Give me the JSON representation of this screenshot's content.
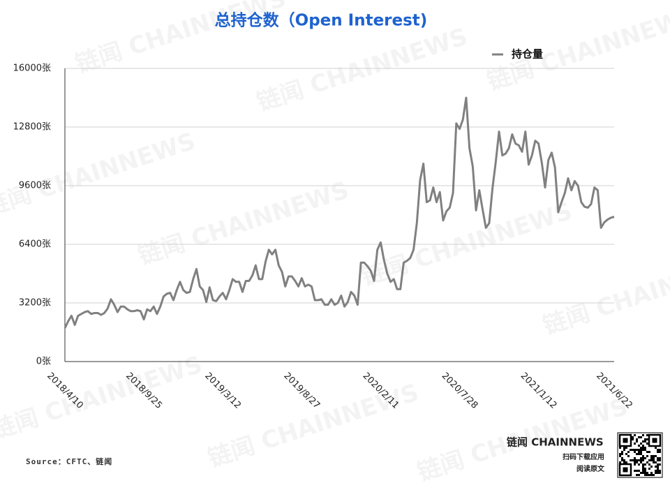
{
  "chart_data": {
    "type": "line",
    "title": "总持仓数（Open Interest)",
    "categories": [
      "2018/4/10",
      null,
      null,
      null,
      null,
      null,
      null,
      null,
      null,
      null,
      null,
      null,
      null,
      null,
      null,
      null,
      null,
      null,
      null,
      null,
      null,
      null,
      null,
      null,
      "2018/9/25",
      null,
      null,
      null,
      null,
      null,
      null,
      null,
      null,
      null,
      null,
      null,
      null,
      null,
      null,
      null,
      null,
      null,
      null,
      null,
      null,
      null,
      null,
      null,
      "2019/3/12",
      null,
      null,
      null,
      null,
      null,
      null,
      null,
      null,
      null,
      null,
      null,
      null,
      null,
      null,
      null,
      null,
      null,
      null,
      null,
      null,
      null,
      null,
      null,
      "2019/8/27",
      null,
      null,
      null,
      null,
      null,
      null,
      null,
      null,
      null,
      null,
      null,
      null,
      null,
      null,
      null,
      null,
      null,
      null,
      null,
      null,
      null,
      null,
      null,
      "2020/2/11",
      null,
      null,
      null,
      null,
      null,
      null,
      null,
      null,
      null,
      null,
      null,
      null,
      null,
      null,
      null,
      null,
      null,
      null,
      null,
      null,
      null,
      null,
      null,
      "2020/7/28",
      null,
      null,
      null,
      null,
      null,
      null,
      null,
      null,
      null,
      null,
      null,
      null,
      null,
      null,
      null,
      null,
      null,
      null,
      null,
      null,
      null,
      null,
      null,
      "2021/1/12",
      null,
      null,
      null,
      null,
      null,
      null,
      null,
      null,
      null,
      null,
      null,
      null,
      null,
      null,
      null,
      null,
      null,
      null,
      null,
      null,
      null,
      null,
      "2021/6/22"
    ],
    "series": [
      {
        "name": "持仓量",
        "color": "#808080",
        "values": [
          1830,
          2200,
          2500,
          2000,
          2500,
          2600,
          2700,
          2750,
          2600,
          2650,
          2650,
          2550,
          2650,
          2900,
          3400,
          3100,
          2700,
          3000,
          3000,
          2850,
          2750,
          2750,
          2800,
          2750,
          2300,
          2850,
          2750,
          3000,
          2600,
          3000,
          3550,
          3700,
          3750,
          3350,
          3900,
          4350,
          3900,
          3750,
          3800,
          4500,
          5050,
          4100,
          3900,
          3250,
          4050,
          3350,
          3300,
          3550,
          3750,
          3400,
          3900,
          4500,
          4350,
          4350,
          3800,
          4400,
          4400,
          4700,
          5250,
          4500,
          4500,
          5450,
          6100,
          5850,
          6100,
          5250,
          4900,
          4100,
          4650,
          4650,
          4400,
          4100,
          4550,
          4100,
          4200,
          4100,
          3350,
          3350,
          3400,
          3100,
          3100,
          3400,
          3100,
          3200,
          3600,
          3000,
          3250,
          3800,
          3600,
          3100,
          5400,
          5400,
          5200,
          4950,
          4400,
          6100,
          6500,
          5550,
          4800,
          4350,
          4500,
          3950,
          3950,
          5400,
          5500,
          5650,
          6100,
          7550,
          9900,
          10800,
          8700,
          8800,
          9500,
          8700,
          9250,
          7700,
          8200,
          8400,
          9200,
          13000,
          12700,
          13200,
          14400,
          11650,
          10650,
          8250,
          9350,
          8300,
          7300,
          7550,
          9450,
          10900,
          12550,
          11250,
          11350,
          11650,
          12400,
          11900,
          11800,
          11450,
          12550,
          10750,
          11250,
          12050,
          11900,
          10850,
          9500,
          11000,
          11400,
          10600,
          8150,
          8700,
          9200,
          10000,
          9350,
          9850,
          9600,
          8700,
          8450,
          8400,
          8600,
          9500,
          9350,
          7300,
          7600,
          7750,
          7850,
          7900
        ]
      }
    ],
    "ylim": [
      0,
      16000
    ],
    "yticks": [
      {
        "value": 0,
        "label": "0张"
      },
      {
        "value": 3200,
        "label": "3200张"
      },
      {
        "value": 6400,
        "label": "6400张"
      },
      {
        "value": 9600,
        "label": "9600张"
      },
      {
        "value": 12800,
        "label": "12800张"
      },
      {
        "value": 16000,
        "label": "16000张"
      }
    ],
    "grid": true,
    "legend": "top-right"
  },
  "watermark": "链闻 CHAINNEWS",
  "footer": {
    "source": "Source：CFTC、链闻",
    "brand": "链闻 CHAINNEWS",
    "download": "扫码下载应用",
    "read": "阅读原文"
  }
}
